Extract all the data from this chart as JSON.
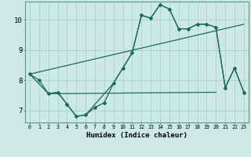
{
  "xlabel": "Humidex (Indice chaleur)",
  "background_color": "#cce9e5",
  "grid_color": "#aad4cf",
  "line_color": "#1a6b5a",
  "x_ticks": [
    0,
    1,
    2,
    3,
    4,
    5,
    6,
    7,
    8,
    9,
    10,
    11,
    12,
    13,
    14,
    15,
    16,
    17,
    18,
    19,
    20,
    21,
    22,
    23
  ],
  "ylim": [
    6.6,
    10.6
  ],
  "xlim": [
    -0.5,
    23.5
  ],
  "yticks": [
    7,
    8,
    9,
    10
  ],
  "curve1_x": [
    0,
    1,
    2,
    3,
    4,
    5,
    6,
    7,
    8,
    9,
    10,
    11,
    12,
    13,
    14,
    15,
    16,
    17,
    18,
    19,
    20,
    21,
    22,
    23
  ],
  "curve1_y": [
    8.2,
    8.0,
    7.55,
    7.6,
    7.2,
    6.8,
    6.85,
    7.1,
    7.25,
    7.9,
    8.4,
    8.9,
    10.15,
    10.05,
    10.5,
    10.35,
    9.7,
    9.7,
    9.85,
    9.85,
    9.75,
    7.75,
    8.4,
    7.6
  ],
  "curve2_x": [
    0,
    2,
    3,
    5,
    6,
    9,
    10,
    11,
    12,
    13,
    14,
    15,
    16,
    17,
    18,
    19,
    20,
    21,
    22,
    23
  ],
  "curve2_y": [
    8.2,
    7.55,
    7.6,
    6.8,
    6.85,
    7.9,
    8.4,
    8.9,
    10.15,
    10.05,
    10.5,
    10.35,
    9.7,
    9.7,
    9.85,
    9.85,
    9.75,
    7.75,
    8.4,
    7.6
  ],
  "curve3_x": [
    0,
    23
  ],
  "curve3_y": [
    8.2,
    9.85
  ],
  "curve4_x": [
    2,
    20
  ],
  "curve4_y": [
    7.55,
    7.6
  ]
}
